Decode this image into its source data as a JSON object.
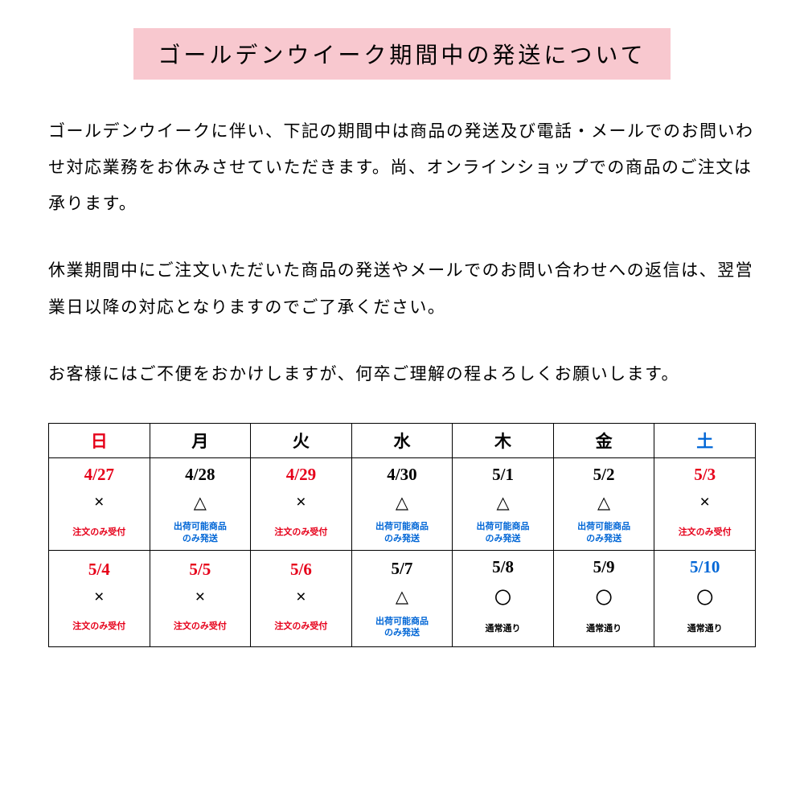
{
  "title": "ゴールデンウイーク期間中の発送について",
  "paragraphs": {
    "p1": "ゴールデンウイークに伴い、下記の期間中は商品の発送及び電話・メールでのお問いわせ対応業務をお休みさせていただきます。尚、オンラインショップでの商品のご注文は承ります。",
    "p2": "休業期間中にご注文いただいた商品の発送やメールでのお問い合わせへの返信は、翌営業日以降の対応となりますのでご了承ください。",
    "p3": "お客様にはご不便をおかけしますが、何卒ご理解の程よろしくお願いします。"
  },
  "calendar": {
    "headers": [
      {
        "label": "日",
        "color": "#e6001a"
      },
      {
        "label": "月",
        "color": "#000000"
      },
      {
        "label": "火",
        "color": "#000000"
      },
      {
        "label": "水",
        "color": "#000000"
      },
      {
        "label": "木",
        "color": "#000000"
      },
      {
        "label": "金",
        "color": "#000000"
      },
      {
        "label": "土",
        "color": "#0066d6"
      }
    ],
    "row1": [
      {
        "date": "4/27",
        "date_color": "#e6001a",
        "symbol": "×",
        "symbol_color": "#000000",
        "note": "注文のみ受付",
        "note_color": "#e6001a"
      },
      {
        "date": "4/28",
        "date_color": "#000000",
        "symbol": "△",
        "symbol_color": "#000000",
        "note": "出荷可能商品\nのみ発送",
        "note_color": "#0066d6"
      },
      {
        "date": "4/29",
        "date_color": "#e6001a",
        "symbol": "×",
        "symbol_color": "#000000",
        "note": "注文のみ受付",
        "note_color": "#e6001a"
      },
      {
        "date": "4/30",
        "date_color": "#000000",
        "symbol": "△",
        "symbol_color": "#000000",
        "note": "出荷可能商品\nのみ発送",
        "note_color": "#0066d6"
      },
      {
        "date": "5/1",
        "date_color": "#000000",
        "symbol": "△",
        "symbol_color": "#000000",
        "note": "出荷可能商品\nのみ発送",
        "note_color": "#0066d6"
      },
      {
        "date": "5/2",
        "date_color": "#000000",
        "symbol": "△",
        "symbol_color": "#000000",
        "note": "出荷可能商品\nのみ発送",
        "note_color": "#0066d6"
      },
      {
        "date": "5/3",
        "date_color": "#e6001a",
        "symbol": "×",
        "symbol_color": "#000000",
        "note": "注文のみ受付",
        "note_color": "#e6001a"
      }
    ],
    "row2": [
      {
        "date": "5/4",
        "date_color": "#e6001a",
        "symbol": "×",
        "symbol_color": "#000000",
        "note": "注文のみ受付",
        "note_color": "#e6001a"
      },
      {
        "date": "5/5",
        "date_color": "#e6001a",
        "symbol": "×",
        "symbol_color": "#000000",
        "note": "注文のみ受付",
        "note_color": "#e6001a"
      },
      {
        "date": "5/6",
        "date_color": "#e6001a",
        "symbol": "×",
        "symbol_color": "#000000",
        "note": "注文のみ受付",
        "note_color": "#e6001a"
      },
      {
        "date": "5/7",
        "date_color": "#000000",
        "symbol": "△",
        "symbol_color": "#000000",
        "note": "出荷可能商品\nのみ発送",
        "note_color": "#0066d6"
      },
      {
        "date": "5/8",
        "date_color": "#000000",
        "symbol": "〇",
        "symbol_color": "#000000",
        "note": "通常通り",
        "note_color": "#000000"
      },
      {
        "date": "5/9",
        "date_color": "#000000",
        "symbol": "〇",
        "symbol_color": "#000000",
        "note": "通常通り",
        "note_color": "#000000"
      },
      {
        "date": "5/10",
        "date_color": "#0066d6",
        "symbol": "〇",
        "symbol_color": "#000000",
        "note": "通常通り",
        "note_color": "#000000"
      }
    ]
  },
  "colors": {
    "title_bg": "#f8c8cf",
    "red": "#e6001a",
    "blue": "#0066d6",
    "black": "#000000",
    "border": "#000000",
    "background": "#ffffff"
  }
}
